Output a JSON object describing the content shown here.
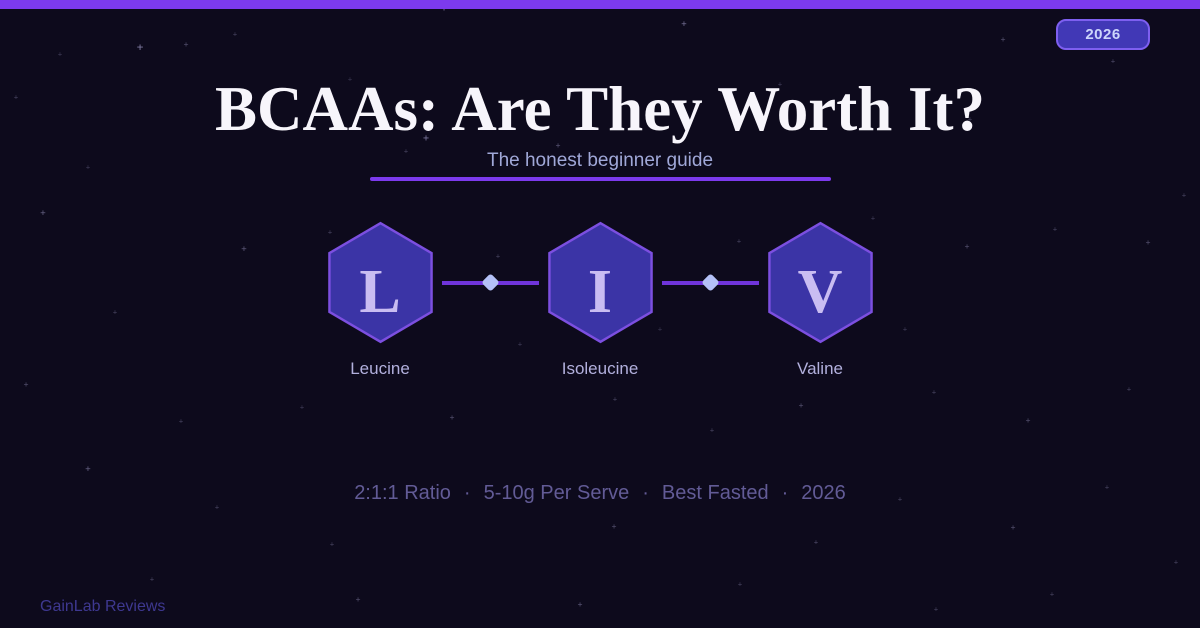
{
  "theme": {
    "background": "#0d0a1c",
    "accent": "#7c3aed",
    "hex_fill": "#3b34a6",
    "hex_border": "#7c4fe0",
    "letter_color": "#c9bdf2",
    "connector_color": "#6f34da",
    "dot_color": "#b4c1f7",
    "title_color": "#f7f5fb",
    "subtitle_color": "#a0a8d8",
    "label_color": "#b2b0dd",
    "stats_color": "#625b96",
    "footer_color": "#3e3890",
    "badge_fill": "#4138b6",
    "badge_border": "#7e5ff0",
    "badge_text": "#cdd5fb",
    "star_color": "#9a95c0"
  },
  "badge": {
    "label": "2026"
  },
  "header": {
    "title": "BCAAs: Are They Worth It?",
    "subtitle": "The honest beginner guide"
  },
  "amino_acids": {
    "items": [
      {
        "letter": "L",
        "name": "Leucine"
      },
      {
        "letter": "I",
        "name": "Isoleucine"
      },
      {
        "letter": "V",
        "name": "Valine"
      }
    ]
  },
  "stats": {
    "separator": "·",
    "items": [
      "2:1:1 Ratio",
      "5-10g Per Serve",
      "Best Fasted",
      "2026"
    ]
  },
  "footer": {
    "brand": "GainLab Reviews"
  }
}
